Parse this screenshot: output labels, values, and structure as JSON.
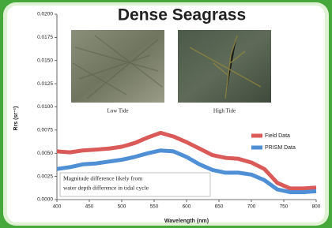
{
  "chart_data": {
    "type": "line",
    "title": "Dense Seagrass",
    "x_label": "Wavelength (nm)",
    "y_label": "Rrs (sr⁻¹)",
    "photo_labels": [
      "Low Tide",
      "High Tide"
    ],
    "annotation": [
      "Magnitude difference likely from",
      "water depth difference in tidal cycle"
    ],
    "x": [
      400,
      420,
      440,
      460,
      480,
      500,
      520,
      540,
      560,
      580,
      600,
      620,
      640,
      660,
      680,
      700,
      720,
      740,
      760,
      780,
      800
    ],
    "series": [
      {
        "name": "Field Data",
        "color": "#d95a58",
        "values": [
          0.0052,
          0.0051,
          0.0053,
          0.0054,
          0.0055,
          0.0057,
          0.0061,
          0.0067,
          0.0072,
          0.0068,
          0.0062,
          0.0055,
          0.0048,
          0.0045,
          0.0044,
          0.004,
          0.0033,
          0.0018,
          0.0012,
          0.0012,
          0.0013
        ]
      },
      {
        "name": "PRISM Data",
        "color": "#4f8fd6",
        "values": [
          0.0033,
          0.0035,
          0.0038,
          0.0039,
          0.0041,
          0.0043,
          0.0046,
          0.005,
          0.0053,
          0.0052,
          0.0046,
          0.0038,
          0.0032,
          0.0029,
          0.0029,
          0.0027,
          0.0021,
          0.0011,
          0.0008,
          0.0008,
          0.0009
        ]
      }
    ],
    "xlim": [
      400,
      800
    ],
    "xticks": [
      400,
      450,
      500,
      550,
      600,
      650,
      700,
      750,
      800
    ],
    "ylim": [
      0,
      0.02
    ],
    "yticks": [
      {
        "value": 0,
        "label": "0.0000"
      },
      {
        "value": 0.0025,
        "label": "0.0025"
      },
      {
        "value": 0.005,
        "label": "0.0050"
      },
      {
        "value": 0.0075,
        "label": "0.0075"
      },
      {
        "value": 0.01,
        "label": "0.0100"
      },
      {
        "value": 0.0125,
        "label": "0.0125"
      },
      {
        "value": 0.015,
        "label": "0.0150"
      },
      {
        "value": 0.0175,
        "label": "0.0175"
      },
      {
        "value": 0.02,
        "label": "0.0200"
      }
    ],
    "legend": "right"
  }
}
